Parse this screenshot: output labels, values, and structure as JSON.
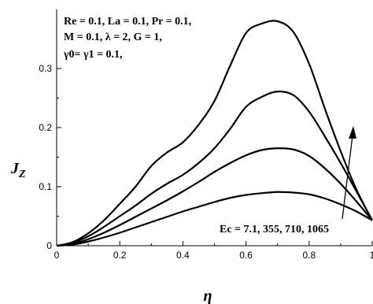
{
  "chart_data": {
    "type": "line",
    "xlabel": "η",
    "ylabel": "J",
    "ylabel_sub": "Z",
    "xlim": [
      0,
      1
    ],
    "ylim": [
      0,
      0.4
    ],
    "x_ticks": [
      0,
      0.2,
      0.4,
      0.6,
      0.8,
      1
    ],
    "x_tick_labels": [
      "0",
      "0.2",
      "0.4",
      "0.6",
      "0.8",
      "1"
    ],
    "y_ticks": [
      0,
      0.1,
      0.2,
      0.3
    ],
    "y_tick_labels": [
      "0",
      "0.1",
      "0.2",
      "0.3"
    ],
    "grid": false,
    "params_lines": [
      "Re = 0.1, La = 0.1, Pr = 0.1,",
      "M = 0.1, λ = 2, G = 1,",
      "γ0= γ1 = 0.1,"
    ],
    "series_label": "Ec = 7.1, 355, 710, 1065",
    "arrow": "increasing Ec",
    "series": [
      {
        "x": [
          0,
          0.05,
          0.1,
          0.15,
          0.2,
          0.25,
          0.3,
          0.35,
          0.4,
          0.45,
          0.5,
          0.55,
          0.6,
          0.65,
          0.7,
          0.75,
          0.8,
          0.85,
          0.9,
          0.95,
          1
        ],
        "values": [
          0,
          0.002,
          0.007,
          0.014,
          0.022,
          0.031,
          0.04,
          0.049,
          0.058,
          0.066,
          0.074,
          0.081,
          0.086,
          0.089,
          0.091,
          0.09,
          0.087,
          0.08,
          0.07,
          0.058,
          0.043
        ]
      },
      {
        "x": [
          0,
          0.05,
          0.1,
          0.15,
          0.2,
          0.25,
          0.3,
          0.35,
          0.4,
          0.45,
          0.5,
          0.55,
          0.6,
          0.65,
          0.7,
          0.75,
          0.8,
          0.85,
          0.9,
          0.95,
          1
        ],
        "values": [
          0,
          0.003,
          0.011,
          0.022,
          0.035,
          0.049,
          0.063,
          0.077,
          0.092,
          0.108,
          0.125,
          0.14,
          0.153,
          0.162,
          0.165,
          0.163,
          0.152,
          0.131,
          0.105,
          0.075,
          0.043
        ]
      },
      {
        "x": [
          0,
          0.05,
          0.1,
          0.15,
          0.2,
          0.25,
          0.3,
          0.35,
          0.4,
          0.45,
          0.5,
          0.55,
          0.6,
          0.65,
          0.7,
          0.75,
          0.8,
          0.85,
          0.9,
          0.95,
          1
        ],
        "values": [
          0,
          0.005,
          0.016,
          0.032,
          0.05,
          0.068,
          0.088,
          0.105,
          0.12,
          0.14,
          0.165,
          0.198,
          0.235,
          0.252,
          0.261,
          0.255,
          0.227,
          0.185,
          0.14,
          0.092,
          0.043
        ]
      },
      {
        "x": [
          0,
          0.05,
          0.1,
          0.15,
          0.2,
          0.25,
          0.3,
          0.35,
          0.4,
          0.45,
          0.5,
          0.55,
          0.6,
          0.65,
          0.7,
          0.75,
          0.8,
          0.85,
          0.9,
          0.95,
          1
        ],
        "values": [
          0,
          0.006,
          0.021,
          0.043,
          0.071,
          0.1,
          0.135,
          0.158,
          0.175,
          0.205,
          0.245,
          0.305,
          0.36,
          0.376,
          0.38,
          0.362,
          0.308,
          0.232,
          0.16,
          0.095,
          0.043
        ]
      }
    ]
  }
}
